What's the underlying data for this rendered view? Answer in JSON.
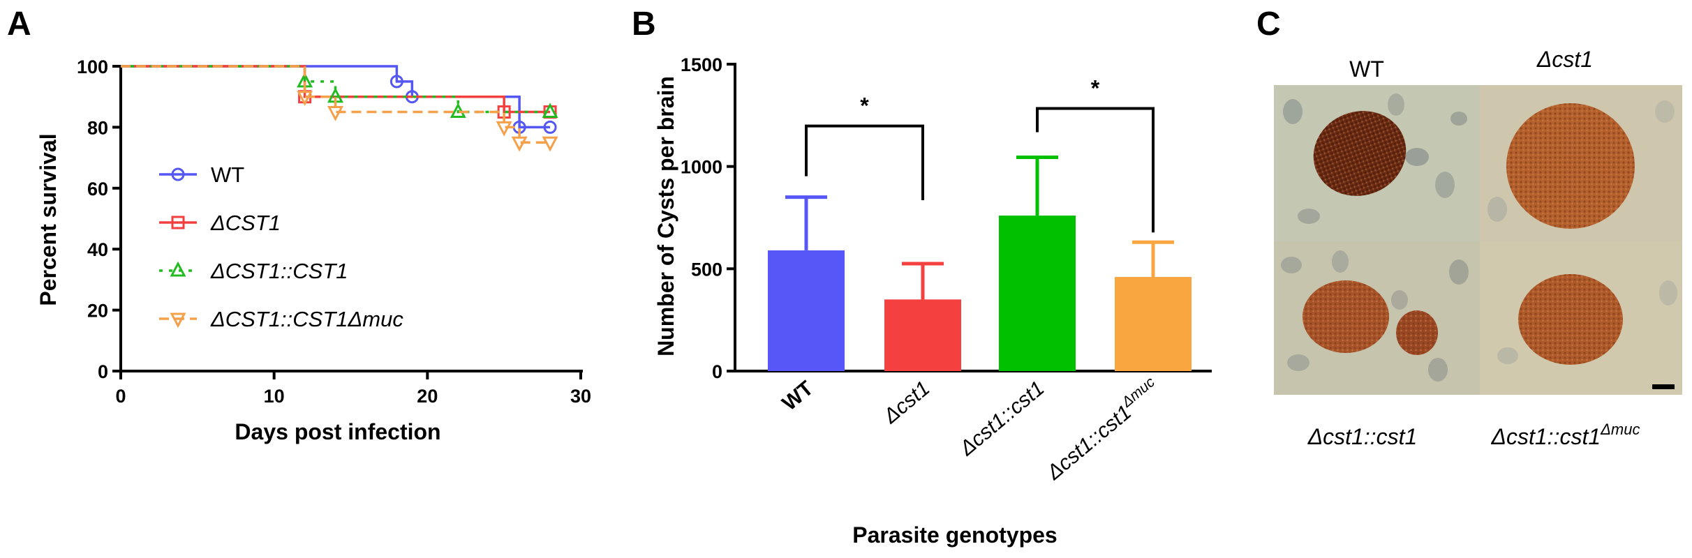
{
  "panel_labels": [
    "A",
    "B",
    "C"
  ],
  "chart_data": [
    {
      "type": "line",
      "subtype": "survival-step",
      "xlabel": "Days post infection",
      "ylabel": "Percent survival",
      "xlim": [
        0,
        30
      ],
      "ylim": [
        0,
        100
      ],
      "xticks": [
        0,
        10,
        20,
        30
      ],
      "yticks": [
        0,
        20,
        40,
        60,
        80,
        100
      ],
      "legend_position": "center-left",
      "series": [
        {
          "name": "WT",
          "color": "#5557f2",
          "marker": "circle",
          "dash": "solid",
          "x": [
            0,
            18,
            19,
            26,
            28
          ],
          "y": [
            100,
            95,
            90,
            80,
            80
          ]
        },
        {
          "name": "ΔCST1",
          "color": "#f24040",
          "marker": "square",
          "dash": "solid",
          "x": [
            0,
            12,
            25,
            28
          ],
          "y": [
            100,
            90,
            85,
            85
          ]
        },
        {
          "name": "ΔCST1::CST1",
          "color": "#22bb22",
          "marker": "triangle-up",
          "dash": "dotted",
          "x": [
            0,
            12,
            14,
            22,
            28
          ],
          "y": [
            100,
            95,
            90,
            85,
            85
          ]
        },
        {
          "name": "ΔCST1::CST1Δmuc",
          "color": "#f5a04a",
          "marker": "triangle-down",
          "dash": "dashed",
          "x": [
            0,
            12,
            14,
            25,
            26,
            28
          ],
          "y": [
            100,
            90,
            85,
            80,
            75,
            75
          ]
        }
      ]
    },
    {
      "type": "bar",
      "xlabel": "Parasite genotypes",
      "ylabel": "Number of Cysts per brain",
      "ylim": [
        0,
        1500
      ],
      "yticks": [
        0,
        500,
        1000,
        1500
      ],
      "categories": [
        "WT",
        "Δcst1",
        "Δcst1::cst1",
        "Δcst1::cst1Δmuc"
      ],
      "category_main": [
        "WT",
        "Δcst1",
        "Δcst1::cst1",
        "Δcst1::cst1"
      ],
      "category_sup": [
        "",
        "",
        "",
        "Δmuc"
      ],
      "values": [
        590,
        350,
        760,
        460
      ],
      "error_upper": [
        850,
        525,
        1045,
        630
      ],
      "colors": [
        "#5757f7",
        "#f54040",
        "#00c000",
        "#f9a540"
      ],
      "significance": [
        {
          "between": [
            0,
            1
          ],
          "label": "*"
        },
        {
          "between": [
            2,
            3
          ],
          "label": "*"
        }
      ]
    }
  ],
  "micrographs": {
    "top_labels": [
      "WT",
      "Δcst1"
    ],
    "bottom_labels": [
      {
        "main": "Δcst1::cst1",
        "sup": ""
      },
      {
        "main": "Δcst1::cst1",
        "sup": "Δmuc"
      }
    ],
    "scale_bar": true,
    "tissue_color": "#c9c3a6",
    "cyst_color": "#a8572a"
  }
}
